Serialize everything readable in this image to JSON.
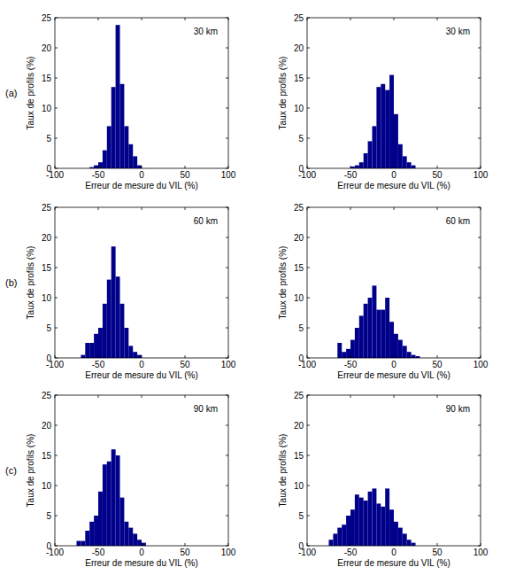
{
  "chart_data": [
    {
      "type": "histogram",
      "panel_label": "(a)",
      "annotation": "30 km",
      "xlabel": "Erreur de mesure du VIL (%)",
      "ylabel": "Taux de profils (%)",
      "color": "#00008b",
      "bins": [
        -100,
        -95,
        -90,
        -85,
        -80,
        -75,
        -70,
        -65,
        -60,
        -55,
        -50,
        -45,
        -40,
        -35,
        -30,
        -25,
        -20,
        -15,
        -10,
        -5,
        0,
        5,
        10,
        15,
        20,
        25,
        30,
        35,
        40,
        45,
        50,
        55,
        60,
        65,
        70,
        75,
        80,
        85,
        90,
        95,
        100
      ],
      "values": [
        0,
        0,
        0,
        0,
        0,
        0,
        0,
        0,
        0.2,
        0.5,
        1,
        3,
        7,
        13.5,
        23.8,
        14,
        7,
        4,
        2,
        0.5,
        0,
        0,
        0,
        0,
        0,
        0,
        0,
        0,
        0,
        0,
        0,
        0,
        0,
        0,
        0,
        0,
        0,
        0,
        0,
        0
      ],
      "xlim": [
        -100,
        100
      ],
      "ylim": [
        0,
        25
      ],
      "xticks": [
        -100,
        -50,
        0,
        50,
        100
      ],
      "yticks": [
        0,
        5,
        10,
        15,
        20,
        25
      ]
    },
    {
      "type": "histogram",
      "annotation": "30 km",
      "xlabel": "Erreur de mesure du VIL (%)",
      "ylabel": "Taux de profils (%)",
      "color": "#00008b",
      "bins": [
        -100,
        -95,
        -90,
        -85,
        -80,
        -75,
        -70,
        -65,
        -60,
        -55,
        -50,
        -45,
        -40,
        -35,
        -30,
        -25,
        -20,
        -15,
        -10,
        -5,
        0,
        5,
        10,
        15,
        20,
        25,
        30,
        35,
        40,
        45,
        50,
        55,
        60,
        65,
        70,
        75,
        80,
        85,
        90,
        95,
        100
      ],
      "values": [
        0,
        0,
        0,
        0,
        0,
        0,
        0,
        0,
        0,
        0,
        0.3,
        0.5,
        1,
        2.5,
        4.5,
        7,
        13.5,
        14,
        13,
        15.5,
        9,
        4,
        2,
        1,
        0.5,
        0,
        0,
        0,
        0,
        0,
        0,
        0,
        0,
        0,
        0,
        0,
        0,
        0,
        0,
        0
      ],
      "xlim": [
        -100,
        100
      ],
      "ylim": [
        0,
        25
      ],
      "xticks": [
        -100,
        -50,
        0,
        50,
        100
      ],
      "yticks": [
        0,
        5,
        10,
        15,
        20,
        25
      ]
    },
    {
      "type": "histogram",
      "panel_label": "(b)",
      "annotation": "60 km",
      "xlabel": "Erreur de mesure du VIL (%)",
      "ylabel": "Taux de profils (%)",
      "color": "#00008b",
      "bins": [
        -100,
        -95,
        -90,
        -85,
        -80,
        -75,
        -70,
        -65,
        -60,
        -55,
        -50,
        -45,
        -40,
        -35,
        -30,
        -25,
        -20,
        -15,
        -10,
        -5,
        0,
        5,
        10,
        15,
        20,
        25,
        30,
        35,
        40,
        45,
        50,
        55,
        60,
        65,
        70,
        75,
        80,
        85,
        90,
        95,
        100
      ],
      "values": [
        0,
        0,
        0,
        0,
        0,
        0,
        0.5,
        2.5,
        2.5,
        4,
        5,
        9,
        13,
        18.5,
        13.5,
        9,
        5,
        2,
        1,
        0.5,
        0,
        0,
        0,
        0,
        0,
        0,
        0,
        0,
        0,
        0,
        0,
        0,
        0,
        0,
        0,
        0,
        0,
        0,
        0,
        0
      ],
      "xlim": [
        -100,
        100
      ],
      "ylim": [
        0,
        25
      ],
      "xticks": [
        -100,
        -50,
        0,
        50,
        100
      ],
      "yticks": [
        0,
        5,
        10,
        15,
        20,
        25
      ]
    },
    {
      "type": "histogram",
      "annotation": "60 km",
      "xlabel": "Erreur de mesure du VIL (%)",
      "ylabel": "Taux de profils (%)",
      "color": "#00008b",
      "bins": [
        -100,
        -95,
        -90,
        -85,
        -80,
        -75,
        -70,
        -65,
        -60,
        -55,
        -50,
        -45,
        -40,
        -35,
        -30,
        -25,
        -20,
        -15,
        -10,
        -5,
        0,
        5,
        10,
        15,
        20,
        25,
        30,
        35,
        40,
        45,
        50,
        55,
        60,
        65,
        70,
        75,
        80,
        85,
        90,
        95,
        100
      ],
      "values": [
        0,
        0,
        0,
        0,
        0,
        0,
        0,
        2.5,
        1,
        1.5,
        3,
        5,
        7,
        9,
        10,
        12,
        8,
        8,
        10,
        6,
        4,
        3,
        2,
        1,
        0.5,
        0.3,
        0,
        0,
        0,
        0,
        0,
        0,
        0,
        0,
        0,
        0,
        0,
        0,
        0,
        0
      ],
      "xlim": [
        -100,
        100
      ],
      "ylim": [
        0,
        25
      ],
      "xticks": [
        -100,
        -50,
        0,
        50,
        100
      ],
      "yticks": [
        0,
        5,
        10,
        15,
        20,
        25
      ]
    },
    {
      "type": "histogram",
      "panel_label": "(c)",
      "annotation": "90 km",
      "xlabel": "Erreur de mesure du VIL (%)",
      "ylabel": "Taux de profils (%)",
      "color": "#00008b",
      "bins": [
        -100,
        -95,
        -90,
        -85,
        -80,
        -75,
        -70,
        -65,
        -60,
        -55,
        -50,
        -45,
        -40,
        -35,
        -30,
        -25,
        -20,
        -15,
        -10,
        -5,
        0,
        5,
        10,
        15,
        20,
        25,
        30,
        35,
        40,
        45,
        50,
        55,
        60,
        65,
        70,
        75,
        80,
        85,
        90,
        95,
        100
      ],
      "values": [
        0,
        0,
        0,
        0,
        0,
        0.8,
        0.8,
        2.5,
        4,
        5,
        9,
        13.5,
        14,
        16,
        15,
        8,
        4,
        3,
        2,
        1,
        0.5,
        0,
        0,
        0,
        0,
        0,
        0,
        0,
        0,
        0,
        0,
        0,
        0,
        0,
        0,
        0,
        0,
        0,
        0,
        0
      ],
      "xlim": [
        -100,
        100
      ],
      "ylim": [
        0,
        25
      ],
      "xticks": [
        -100,
        -50,
        0,
        50,
        100
      ],
      "yticks": [
        0,
        5,
        10,
        15,
        20,
        25
      ]
    },
    {
      "type": "histogram",
      "annotation": "90 km",
      "xlabel": "Erreur de mesure du VIL (%)",
      "ylabel": "Taux de profils (%)",
      "color": "#00008b",
      "bins": [
        -100,
        -95,
        -90,
        -85,
        -80,
        -75,
        -70,
        -65,
        -60,
        -55,
        -50,
        -45,
        -40,
        -35,
        -30,
        -25,
        -20,
        -15,
        -10,
        -5,
        0,
        5,
        10,
        15,
        20,
        25,
        30,
        35,
        40,
        45,
        50,
        55,
        60,
        65,
        70,
        75,
        80,
        85,
        90,
        95,
        100
      ],
      "values": [
        0,
        0,
        0,
        0,
        0,
        1,
        2,
        3,
        3.5,
        5,
        6,
        8.5,
        8,
        7.5,
        9,
        9.5,
        7,
        6.5,
        9.5,
        6,
        4,
        3,
        2,
        1,
        0.5,
        0,
        0,
        0,
        0,
        0,
        0,
        0,
        0,
        0,
        0,
        0,
        0,
        0,
        0,
        0
      ],
      "xlim": [
        -100,
        100
      ],
      "ylim": [
        0,
        25
      ],
      "xticks": [
        -100,
        -50,
        0,
        50,
        100
      ],
      "yticks": [
        0,
        5,
        10,
        15,
        20,
        25
      ]
    }
  ]
}
